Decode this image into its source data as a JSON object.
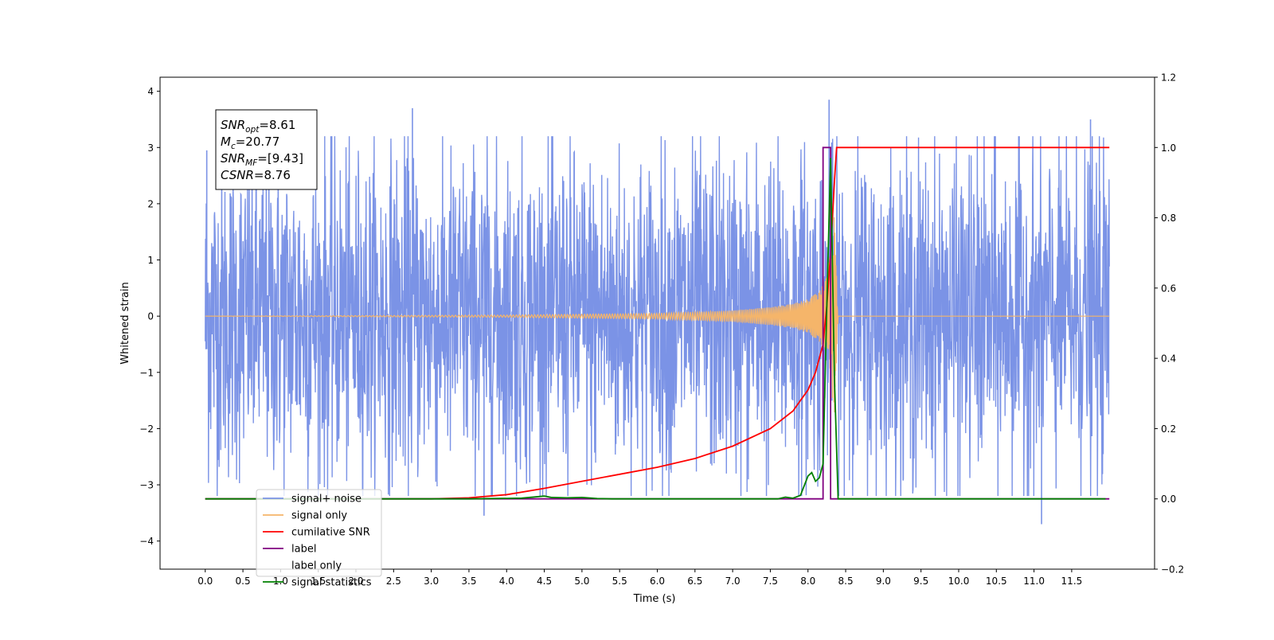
{
  "chart_data": {
    "type": "line",
    "title": "",
    "xlabel": "Time (s)",
    "ylabel_left": "Whitened strain",
    "ylabel_right": "",
    "xlim": [
      -0.6,
      12.6
    ],
    "ylim_left": [
      -4.5,
      4.25
    ],
    "ylim_right": [
      -0.2,
      1.2
    ],
    "x_ticks": [
      "0.0",
      "0.5",
      "1.0",
      "1.5",
      "2.0",
      "2.5",
      "3.0",
      "3.5",
      "4.0",
      "4.5",
      "5.0",
      "5.5",
      "6.0",
      "6.5",
      "7.0",
      "7.5",
      "8.0",
      "8.5",
      "9.0",
      "9.5",
      "10.0",
      "10.5",
      "11.0",
      "11.5"
    ],
    "y_ticks_left": [
      "4",
      "3",
      "2",
      "1",
      "0",
      "−1",
      "−2",
      "−3",
      "−4"
    ],
    "y_ticks_right": [
      "1.2",
      "1.0",
      "0.8",
      "0.6",
      "0.4",
      "0.2",
      "0.0",
      "−0.2"
    ],
    "grid": false,
    "legend_position": "bottom-left",
    "info_box": {
      "lines": [
        {
          "name": "SNR",
          "sub": "opt",
          "value": "=8.61"
        },
        {
          "name": "M",
          "sub": "c",
          "value": "=20.77"
        },
        {
          "name": "SNR",
          "sub": "MF",
          "value": "=[9.43]"
        },
        {
          "name": "CSNR",
          "sub": "",
          "value": "=8.76"
        }
      ]
    },
    "series": [
      {
        "name": "signal+ noise",
        "color": "#7b93e6",
        "axis": "left",
        "kind": "noise",
        "x_range": [
          0.0,
          12.0
        ],
        "typical_range": [
          -2.0,
          2.0
        ],
        "extremes": [
          [
            2.75,
            3.7
          ],
          [
            8.28,
            3.85
          ],
          [
            11.1,
            -3.7
          ],
          [
            11.75,
            3.5
          ],
          [
            3.7,
            -3.55
          ],
          [
            0.02,
            2.95
          ]
        ]
      },
      {
        "name": "signal only",
        "color": "#f5b56a",
        "axis": "left",
        "kind": "chirp",
        "x": [
          0.0,
          4.0,
          6.0,
          7.0,
          7.5,
          7.8,
          8.0,
          8.15,
          8.25,
          8.3,
          8.35,
          8.4,
          12.0
        ],
        "envelope": [
          0.0,
          0.02,
          0.05,
          0.1,
          0.16,
          0.22,
          0.3,
          0.45,
          0.7,
          1.2,
          1.8,
          0.0,
          0.0
        ]
      },
      {
        "name": "cumilative SNR",
        "color": "#ff0000",
        "axis": "right",
        "x": [
          0.0,
          3.0,
          3.5,
          4.0,
          4.5,
          5.0,
          5.5,
          6.0,
          6.5,
          7.0,
          7.5,
          7.8,
          8.0,
          8.1,
          8.2,
          8.25,
          8.3,
          8.35,
          8.38,
          12.0
        ],
        "values": [
          0.0,
          0.0,
          0.003,
          0.012,
          0.03,
          0.05,
          0.07,
          0.09,
          0.115,
          0.15,
          0.2,
          0.25,
          0.31,
          0.36,
          0.44,
          0.55,
          0.7,
          0.9,
          1.0,
          1.0
        ]
      },
      {
        "name": "label",
        "color": "#800080",
        "axis": "right",
        "x": [
          0.0,
          8.2,
          8.2,
          8.3,
          8.3,
          12.0
        ],
        "values": [
          0.0,
          0.0,
          1.0,
          1.0,
          0.0,
          0.0
        ]
      },
      {
        "name": "label only",
        "color": "#800080",
        "axis": "right",
        "hidden": true,
        "x": [],
        "values": []
      },
      {
        "name": "signal statistics",
        "color": "#008000",
        "axis": "right",
        "x": [
          0.0,
          3.5,
          4.2,
          4.5,
          4.6,
          4.8,
          5.0,
          5.2,
          5.4,
          7.6,
          7.7,
          7.8,
          7.9,
          8.0,
          8.05,
          8.1,
          8.15,
          8.2,
          8.25,
          8.3,
          8.35,
          8.4,
          8.45,
          11.95
        ],
        "values": [
          0.0,
          0.0,
          0.002,
          0.008,
          0.004,
          0.003,
          0.004,
          0.001,
          0.0,
          0.0,
          0.005,
          0.002,
          0.01,
          0.065,
          0.075,
          0.05,
          0.06,
          0.1,
          0.55,
          0.97,
          0.35,
          0.0,
          0.0,
          0.0
        ]
      }
    ]
  }
}
